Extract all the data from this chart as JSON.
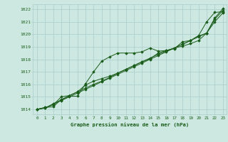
{
  "bg_color": "#cce8e0",
  "grid_color": "#aacccc",
  "line_color": "#1a5c1a",
  "marker_color": "#1a5c1a",
  "text_color": "#1a5c1a",
  "xlabel": "Graphe pression niveau de la mer (hPa)",
  "ylim": [
    1013.6,
    1022.4
  ],
  "xlim": [
    -0.5,
    23.5
  ],
  "yticks": [
    1014,
    1015,
    1016,
    1017,
    1018,
    1019,
    1020,
    1021,
    1022
  ],
  "xticks": [
    0,
    1,
    2,
    3,
    4,
    5,
    6,
    7,
    8,
    9,
    10,
    11,
    12,
    13,
    14,
    15,
    16,
    17,
    18,
    19,
    20,
    21,
    22,
    23
  ],
  "series": [
    [
      1014.0,
      1014.15,
      1014.2,
      1014.8,
      1015.05,
      1015.05,
      1016.05,
      1017.0,
      1017.85,
      1018.2,
      1018.5,
      1018.5,
      1018.5,
      1018.6,
      1018.9,
      1018.65,
      1018.7,
      1018.85,
      1019.4,
      1019.5,
      1019.9,
      1021.0,
      1021.75,
      1021.8
    ],
    [
      1014.0,
      1014.15,
      1014.35,
      1015.0,
      1015.1,
      1015.4,
      1015.95,
      1016.25,
      1016.45,
      1016.65,
      1016.9,
      1017.2,
      1017.5,
      1017.8,
      1018.05,
      1018.5,
      1018.7,
      1018.9,
      1019.05,
      1019.25,
      1019.5,
      1020.1,
      1021.0,
      1021.7
    ],
    [
      1014.0,
      1014.1,
      1014.45,
      1014.75,
      1015.1,
      1015.4,
      1015.7,
      1016.0,
      1016.25,
      1016.55,
      1016.9,
      1017.2,
      1017.5,
      1017.8,
      1018.1,
      1018.4,
      1018.65,
      1018.9,
      1019.2,
      1019.5,
      1019.85,
      1020.1,
      1021.3,
      1022.05
    ],
    [
      1014.0,
      1014.1,
      1014.4,
      1014.7,
      1015.0,
      1015.3,
      1015.6,
      1015.9,
      1016.2,
      1016.5,
      1016.8,
      1017.1,
      1017.4,
      1017.7,
      1018.0,
      1018.3,
      1018.6,
      1018.9,
      1019.2,
      1019.5,
      1019.8,
      1020.1,
      1021.2,
      1021.9
    ]
  ]
}
